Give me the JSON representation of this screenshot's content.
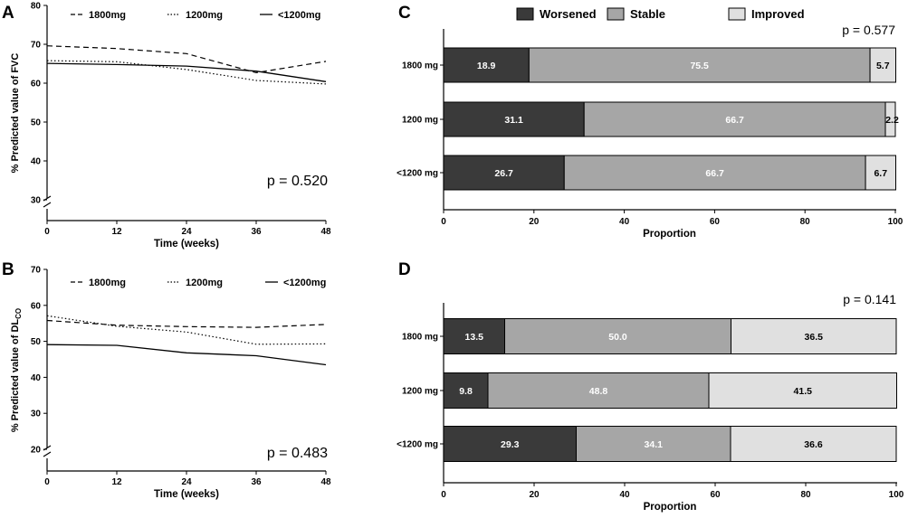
{
  "chart_data": [
    {
      "panel": "A",
      "type": "line",
      "ylabel": "% Predicted value of FVC",
      "xlabel": "Time (weeks)",
      "x": [
        0,
        12,
        24,
        36,
        48
      ],
      "xticks": [
        "0",
        "12",
        "24",
        "36",
        "48"
      ],
      "ylim": [
        30,
        80
      ],
      "yticks": [
        30,
        40,
        50,
        60,
        70,
        80
      ],
      "series": [
        {
          "name": "1800mg",
          "style": "dashed",
          "values": [
            69.6,
            68.9,
            67.6,
            62.7,
            65.6
          ]
        },
        {
          "name": "1200mg",
          "style": "dotted",
          "values": [
            65.8,
            65.5,
            63.5,
            60.7,
            59.8
          ]
        },
        {
          "name": "<1200mg",
          "style": "solid",
          "values": [
            65.1,
            64.8,
            64.4,
            63.1,
            60.4
          ]
        }
      ],
      "pvalue": "p = 0.520"
    },
    {
      "panel": "B",
      "type": "line",
      "ylabel": "% Predicted value of DL",
      "ylabel_sub": "CO",
      "xlabel": "Time (weeks)",
      "x": [
        0,
        12,
        24,
        36,
        48
      ],
      "xticks": [
        "0",
        "12",
        "24",
        "36",
        "48"
      ],
      "ylim": [
        20,
        70
      ],
      "yticks": [
        20,
        30,
        40,
        50,
        60,
        70
      ],
      "series": [
        {
          "name": "1800mg",
          "style": "dashed",
          "values": [
            55.8,
            54.5,
            54.1,
            53.9,
            54.7
          ]
        },
        {
          "name": "1200mg",
          "style": "dotted",
          "values": [
            57.1,
            54.2,
            52.6,
            49.2,
            49.3
          ]
        },
        {
          "name": "<1200mg",
          "style": "solid",
          "values": [
            49.1,
            48.9,
            46.8,
            46.0,
            43.5
          ]
        }
      ],
      "pvalue": "p = 0.483"
    },
    {
      "panel": "C",
      "type": "bar",
      "orientation": "horizontal",
      "stacked": true,
      "xlabel": "Proportion",
      "xlim": [
        0,
        100
      ],
      "xticks": [
        "0",
        "20",
        "40",
        "60",
        "80",
        "100"
      ],
      "categories": [
        "1800 mg",
        "1200 mg",
        "<1200 mg"
      ],
      "series": [
        {
          "name": "Worsened",
          "color": "#3a3a3a",
          "values": [
            18.9,
            31.1,
            26.7
          ]
        },
        {
          "name": "Stable",
          "color": "#a6a6a6",
          "values": [
            75.5,
            66.7,
            66.7
          ]
        },
        {
          "name": "Improved",
          "color": "#e0e0e0",
          "values": [
            5.7,
            2.2,
            6.7
          ]
        }
      ],
      "labels": [
        [
          "18.9",
          "75.5",
          "5.7"
        ],
        [
          "31.1",
          "66.7",
          "2.2"
        ],
        [
          "26.7",
          "66.7",
          "6.7"
        ]
      ],
      "pvalue": "p = 0.577"
    },
    {
      "panel": "D",
      "type": "bar",
      "orientation": "horizontal",
      "stacked": true,
      "xlabel": "Proportion",
      "xlim": [
        0,
        100
      ],
      "xticks": [
        "0",
        "20",
        "40",
        "60",
        "80",
        "100"
      ],
      "categories": [
        "1800 mg",
        "1200 mg",
        "<1200 mg"
      ],
      "series": [
        {
          "name": "Worsened",
          "color": "#3a3a3a",
          "values": [
            13.5,
            9.8,
            29.3
          ]
        },
        {
          "name": "Stable",
          "color": "#a6a6a6",
          "values": [
            50.0,
            48.8,
            34.1
          ]
        },
        {
          "name": "Improved",
          "color": "#e0e0e0",
          "values": [
            36.5,
            41.5,
            36.6
          ]
        }
      ],
      "labels": [
        [
          "13.5",
          "50.0",
          "36.5"
        ],
        [
          "9.8",
          "48.8",
          "41.5"
        ],
        [
          "29.3",
          "34.1",
          "36.6"
        ]
      ],
      "pvalue": "p = 0.141"
    }
  ]
}
